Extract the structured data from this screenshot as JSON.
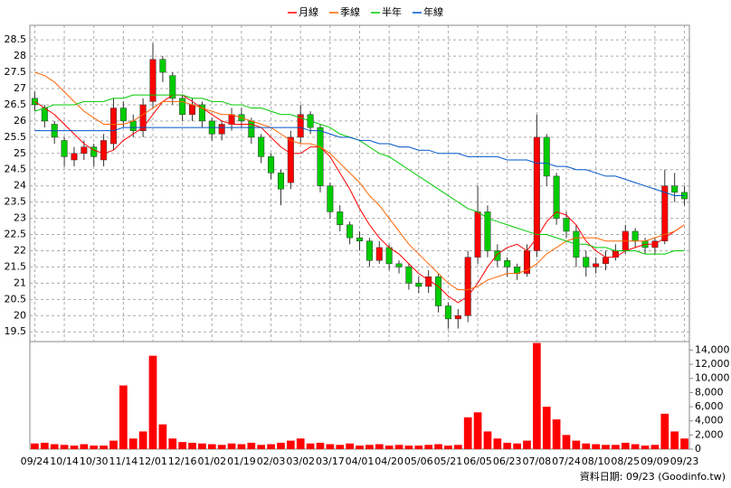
{
  "chart_data": {
    "type": "candlestick",
    "categories": [
      "09/24",
      null,
      null,
      "10/14",
      null,
      null,
      "10/30",
      null,
      null,
      "11/14",
      null,
      null,
      "12/01",
      null,
      null,
      "12/16",
      null,
      null,
      "01/02",
      null,
      null,
      "01/19",
      null,
      null,
      "02/03",
      null,
      null,
      "03/02",
      null,
      null,
      "03/17",
      null,
      null,
      "04/01",
      null,
      null,
      "04/20",
      null,
      null,
      "05/06",
      null,
      null,
      "05/21",
      null,
      null,
      "06/05",
      null,
      null,
      "06/23",
      null,
      null,
      "07/08",
      null,
      null,
      "07/24",
      null,
      null,
      "08/10",
      null,
      null,
      "08/25",
      null,
      null,
      "09/09",
      null,
      null,
      "09/23"
    ],
    "open": [
      26.7,
      26.4,
      25.9,
      25.4,
      24.8,
      25.0,
      25.2,
      24.8,
      25.3,
      26.4,
      26.0,
      25.7,
      26.6,
      27.9,
      27.4,
      26.7,
      26.2,
      26.5,
      26.0,
      25.6,
      25.9,
      26.2,
      26.0,
      25.5,
      24.9,
      24.4,
      24.1,
      25.5,
      26.2,
      25.8,
      24.0,
      23.2,
      22.8,
      22.4,
      22.3,
      21.7,
      22.1,
      21.6,
      21.5,
      21.0,
      20.9,
      21.2,
      20.3,
      19.9,
      20.0,
      21.8,
      23.2,
      22.0,
      21.7,
      21.5,
      21.3,
      22.0,
      25.5,
      24.3,
      23.0,
      22.6,
      21.8,
      21.5,
      21.6,
      21.8,
      22.0,
      22.6,
      22.3,
      22.1,
      22.3,
      24.0,
      23.8
    ],
    "high": [
      26.9,
      26.5,
      26.0,
      25.5,
      25.2,
      25.4,
      25.3,
      25.6,
      26.7,
      26.6,
      26.2,
      26.7,
      28.4,
      28.0,
      27.5,
      26.8,
      26.7,
      26.6,
      26.1,
      26.0,
      26.4,
      26.4,
      26.1,
      25.6,
      25.0,
      24.5,
      25.7,
      26.5,
      26.3,
      25.9,
      24.1,
      23.4,
      22.9,
      22.6,
      22.4,
      22.3,
      22.2,
      21.7,
      21.6,
      21.2,
      21.4,
      21.3,
      20.4,
      20.2,
      22.0,
      24.0,
      23.4,
      22.2,
      21.8,
      21.6,
      22.2,
      26.2,
      25.6,
      24.4,
      23.2,
      22.8,
      22.0,
      21.8,
      22.0,
      22.2,
      22.8,
      22.7,
      22.4,
      22.4,
      24.5,
      24.4,
      24.0
    ],
    "low": [
      26.3,
      25.8,
      25.3,
      24.6,
      24.6,
      24.8,
      24.6,
      24.6,
      25.1,
      25.8,
      25.5,
      25.5,
      26.4,
      27.2,
      26.5,
      26.0,
      26.0,
      25.8,
      25.4,
      25.4,
      25.7,
      25.8,
      25.3,
      24.7,
      24.2,
      23.4,
      23.9,
      25.3,
      25.6,
      23.8,
      23.0,
      22.6,
      22.2,
      22.0,
      21.5,
      21.6,
      21.4,
      21.3,
      20.8,
      20.7,
      20.7,
      20.1,
      19.6,
      19.6,
      19.8,
      21.6,
      21.8,
      21.5,
      21.2,
      21.1,
      21.2,
      21.8,
      24.0,
      22.8,
      22.4,
      21.5,
      21.2,
      21.3,
      21.4,
      21.7,
      21.9,
      22.1,
      21.9,
      21.9,
      22.2,
      23.5,
      23.4
    ],
    "close": [
      26.5,
      26.0,
      25.5,
      24.9,
      25.0,
      25.2,
      24.9,
      25.4,
      26.4,
      26.0,
      25.7,
      26.5,
      27.9,
      27.5,
      26.7,
      26.2,
      26.5,
      26.0,
      25.6,
      25.9,
      26.2,
      26.0,
      25.5,
      24.9,
      24.4,
      23.9,
      25.5,
      26.2,
      25.8,
      24.0,
      23.2,
      22.8,
      22.4,
      22.3,
      21.7,
      22.1,
      21.6,
      21.5,
      21.0,
      20.9,
      21.2,
      20.3,
      19.9,
      20.0,
      21.8,
      23.2,
      22.0,
      21.7,
      21.5,
      21.3,
      22.0,
      25.5,
      24.3,
      23.0,
      22.6,
      21.8,
      21.5,
      21.6,
      21.8,
      22.0,
      22.6,
      22.3,
      22.1,
      22.3,
      24.0,
      23.8,
      23.6
    ],
    "volume": [
      800,
      900,
      700,
      600,
      500,
      700,
      500,
      500,
      1200,
      9000,
      1500,
      2500,
      13200,
      3500,
      1500,
      1000,
      900,
      800,
      700,
      600,
      800,
      700,
      900,
      600,
      700,
      900,
      1200,
      1500,
      800,
      900,
      700,
      600,
      800,
      500,
      600,
      700,
      500,
      600,
      500,
      500,
      600,
      700,
      500,
      600,
      4500,
      5200,
      2500,
      1500,
      900,
      800,
      1200,
      15000,
      6000,
      4200,
      2000,
      1200,
      800,
      700,
      600,
      600,
      900,
      700,
      500,
      600,
      5000,
      2500,
      1500
    ],
    "rise_color": "#ff0000",
    "fall_color": "#00cc00",
    "volume_color": "#ff0000",
    "ma": [
      {
        "name": "月線",
        "color": "#ff0000",
        "values": [
          26.6,
          26.4,
          26.2,
          25.9,
          25.6,
          25.3,
          25.1,
          25.0,
          25.1,
          25.4,
          25.6,
          25.8,
          26.2,
          26.6,
          26.8,
          26.8,
          26.6,
          26.4,
          26.2,
          26.0,
          25.9,
          25.9,
          25.9,
          25.8,
          25.5,
          25.2,
          25.0,
          25.0,
          25.2,
          25.2,
          24.9,
          24.4,
          23.9,
          23.3,
          22.8,
          22.4,
          22.1,
          21.9,
          21.6,
          21.3,
          21.1,
          20.9,
          20.6,
          20.4,
          20.6,
          21.0,
          21.5,
          21.9,
          22.1,
          22.2,
          22.0,
          22.4,
          22.9,
          23.2,
          23.1,
          22.8,
          22.3,
          22.0,
          21.8,
          21.8,
          22.0,
          22.1,
          22.2,
          22.2,
          22.4,
          22.6,
          22.8
        ]
      },
      {
        "name": "季線",
        "color": "#ff6600",
        "values": [
          27.5,
          27.4,
          27.2,
          26.9,
          26.6,
          26.3,
          26.1,
          25.9,
          25.9,
          25.9,
          26.0,
          26.2,
          26.4,
          26.6,
          26.6,
          26.6,
          26.5,
          26.4,
          26.3,
          26.2,
          26.2,
          26.1,
          26.0,
          25.9,
          25.8,
          25.6,
          25.4,
          25.3,
          25.3,
          25.2,
          25.0,
          24.7,
          24.4,
          24.1,
          23.7,
          23.4,
          23.0,
          22.6,
          22.2,
          21.9,
          21.6,
          21.3,
          21.0,
          20.8,
          20.8,
          20.9,
          21.1,
          21.2,
          21.3,
          21.3,
          21.4,
          21.6,
          21.9,
          22.1,
          22.3,
          22.4,
          22.4,
          22.4,
          22.3,
          22.3,
          22.3,
          22.3,
          22.3,
          22.4,
          22.5,
          22.6,
          22.8
        ]
      },
      {
        "name": "半年",
        "color": "#00cc00",
        "values": [
          26.3,
          26.4,
          26.5,
          26.5,
          26.5,
          26.6,
          26.6,
          26.6,
          26.7,
          26.7,
          26.8,
          26.8,
          26.8,
          26.8,
          26.8,
          26.8,
          26.7,
          26.7,
          26.6,
          26.6,
          26.5,
          26.5,
          26.4,
          26.4,
          26.3,
          26.2,
          26.2,
          26.1,
          26.0,
          25.9,
          25.8,
          25.6,
          25.5,
          25.4,
          25.2,
          25.0,
          24.9,
          24.7,
          24.5,
          24.3,
          24.1,
          23.9,
          23.7,
          23.5,
          23.3,
          23.2,
          23.0,
          22.9,
          22.8,
          22.7,
          22.6,
          22.5,
          22.5,
          22.4,
          22.3,
          22.2,
          22.2,
          22.1,
          22.1,
          22.0,
          22.0,
          22.0,
          21.9,
          21.9,
          21.9,
          22.0,
          22.0
        ]
      },
      {
        "name": "年線",
        "color": "#0055cc",
        "values": [
          25.7,
          25.7,
          25.7,
          25.7,
          25.7,
          25.7,
          25.7,
          25.7,
          25.7,
          25.8,
          25.8,
          25.8,
          25.8,
          25.8,
          25.8,
          25.8,
          25.8,
          25.8,
          25.8,
          25.8,
          25.8,
          25.8,
          25.8,
          25.8,
          25.8,
          25.8,
          25.8,
          25.8,
          25.7,
          25.7,
          25.6,
          25.5,
          25.5,
          25.4,
          25.4,
          25.3,
          25.3,
          25.2,
          25.2,
          25.1,
          25.1,
          25.0,
          25.0,
          25.0,
          24.9,
          24.9,
          24.9,
          24.9,
          24.8,
          24.8,
          24.8,
          24.7,
          24.7,
          24.6,
          24.6,
          24.5,
          24.5,
          24.4,
          24.3,
          24.3,
          24.2,
          24.1,
          24.0,
          23.9,
          23.8,
          23.7,
          23.7
        ]
      }
    ],
    "ylim": [
      19.2,
      28.95
    ],
    "yticks": [
      19.5,
      20,
      20.5,
      21,
      21.5,
      22,
      22.5,
      23,
      23.5,
      24,
      24.5,
      25,
      25.5,
      26,
      26.5,
      27,
      27.5,
      28,
      28.5
    ],
    "y2lim": [
      0,
      15200
    ],
    "y2ticks": [
      0,
      {
        "value": 2000,
        "label": "2,000"
      },
      {
        "value": 4000,
        "label": "4,000"
      },
      {
        "value": 6000,
        "label": "6,000"
      },
      {
        "value": 8000,
        "label": "8,000"
      },
      {
        "value": 10000,
        "label": "10,000"
      },
      {
        "value": 12000,
        "label": "12,000"
      },
      {
        "value": 14000,
        "label": "14,000"
      }
    ],
    "grid": true,
    "footnote": "資料日期: 09/23 (Goodinfo.tw)"
  }
}
